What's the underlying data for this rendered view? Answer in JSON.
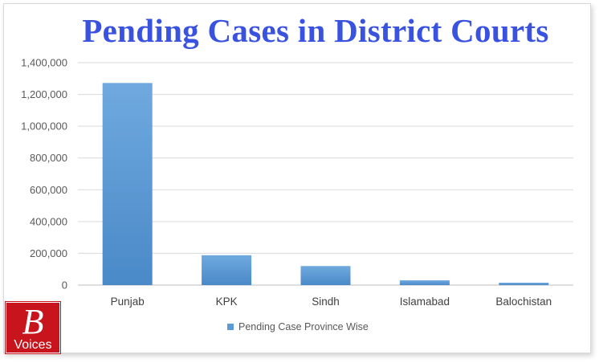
{
  "colors": {
    "title": "#3a52e0",
    "bar": "#5b9bd5",
    "bar_dark": "#4a89c8",
    "grid": "#d9d9d9",
    "logo_bg": "#c8141c"
  },
  "logo": {
    "letter": "B",
    "word": "Voices"
  },
  "chart_data": {
    "type": "bar",
    "title": "Pending Cases in District Courts",
    "categories": [
      "Punjab",
      "KPK",
      "Sindh",
      "Islamabad",
      "Balochistan"
    ],
    "series": [
      {
        "name": "Pending Case Province Wise",
        "values": [
          1272000,
          188000,
          120000,
          30000,
          15000
        ]
      }
    ],
    "yticks": [
      "0",
      "200,000",
      "400,000",
      "600,000",
      "800,000",
      "1,000,000",
      "1,200,000",
      "1,400,000"
    ],
    "ylim": [
      0,
      1400000
    ],
    "grid": true,
    "legend_position": "bottom"
  }
}
